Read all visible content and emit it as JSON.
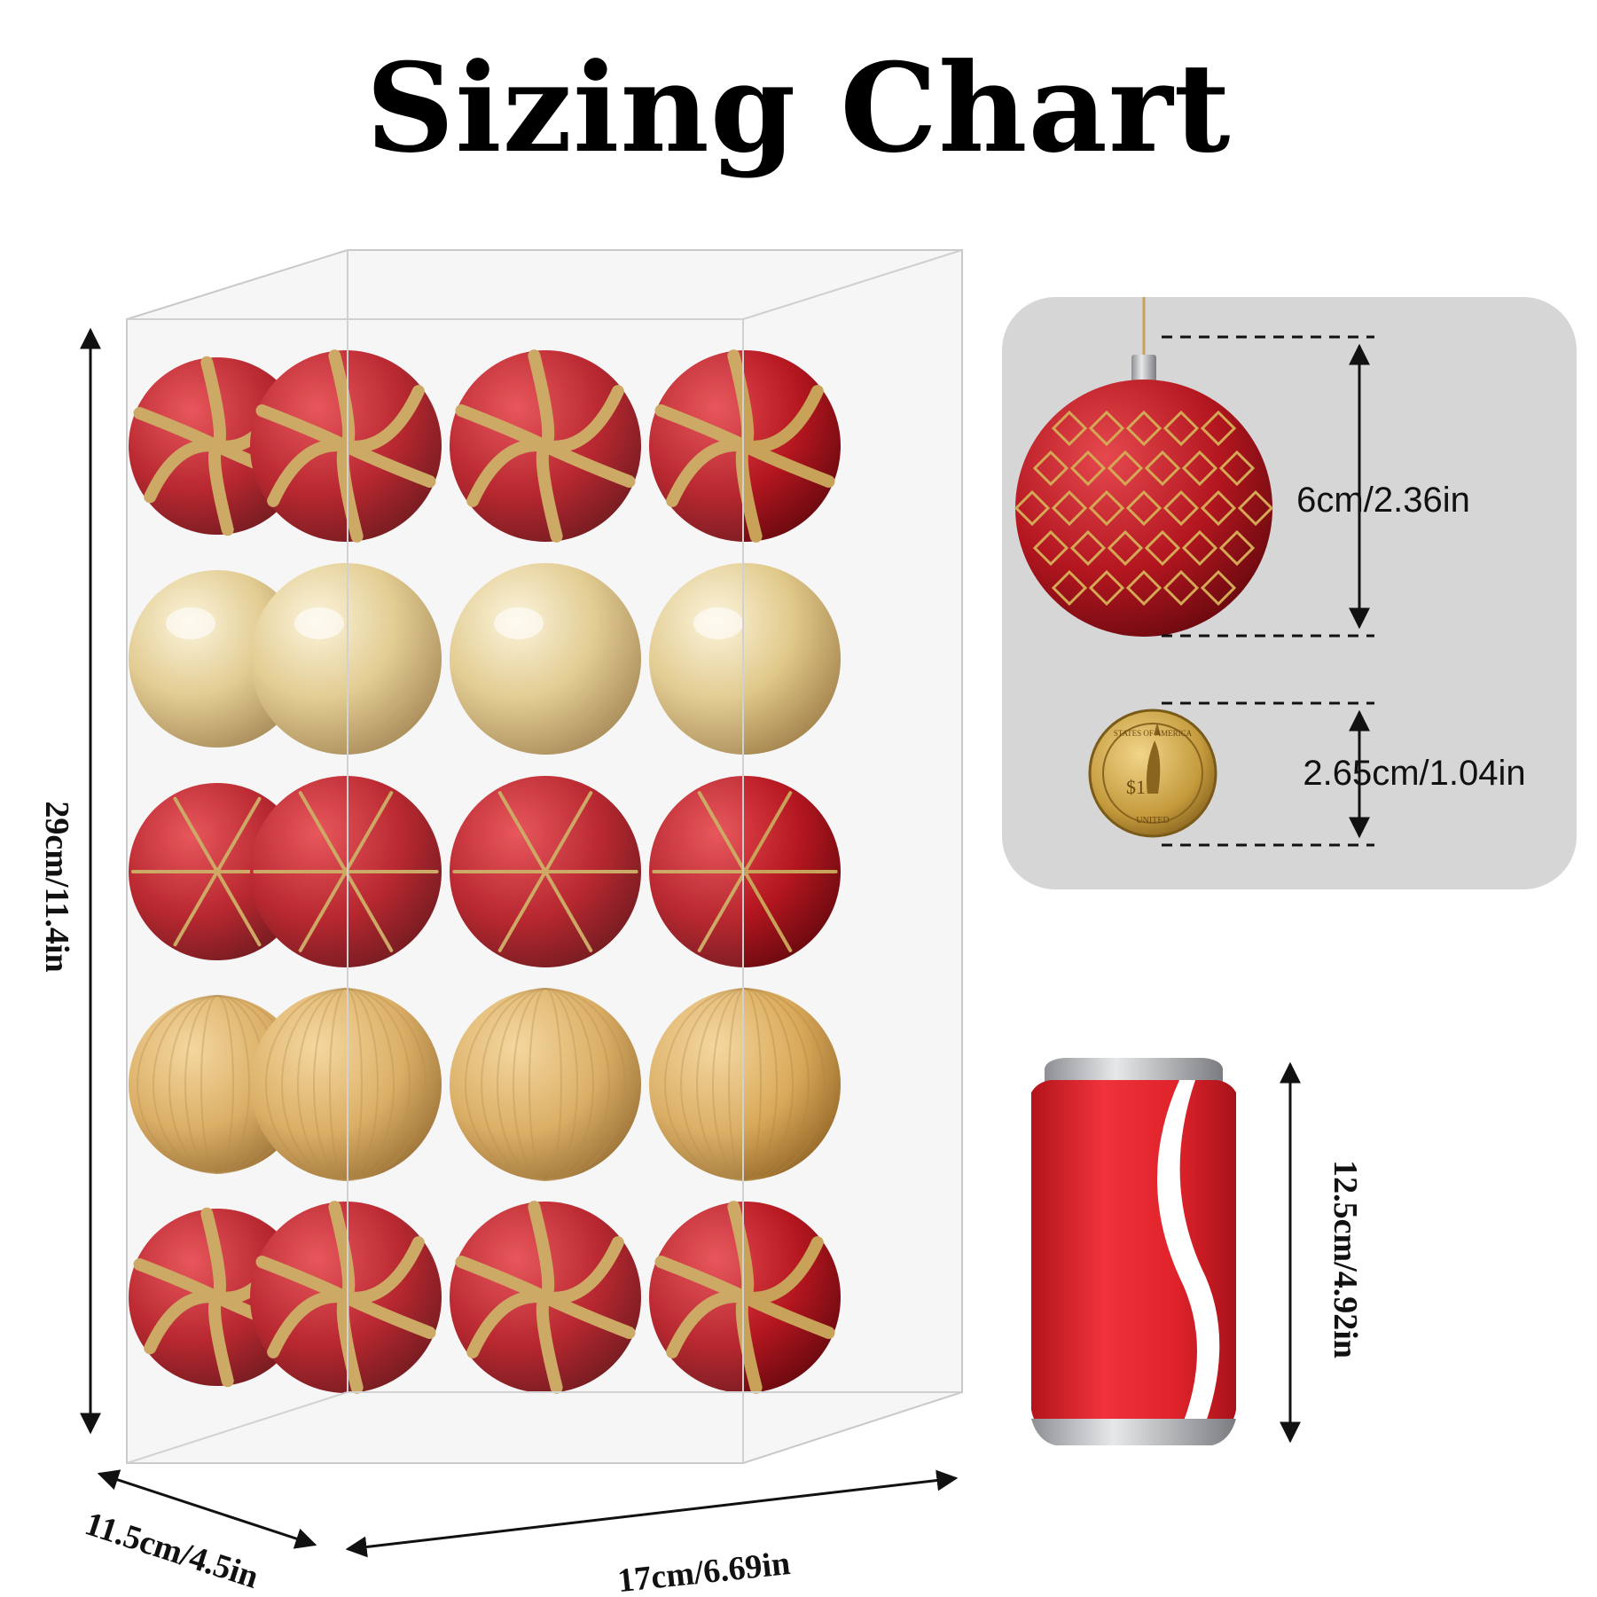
{
  "title": "Sizing Chart",
  "box": {
    "height_label": "29cm/11.4in",
    "width_label": "17cm/6.69in",
    "depth_label": "11.5cm/4.5in",
    "rows": [
      {
        "style": "swirl",
        "colors": [
          "#b5242a",
          "#c9a25a"
        ]
      },
      {
        "style": "shiny",
        "colors": [
          "#e8d39a",
          "#b8965a"
        ]
      },
      {
        "style": "geometric",
        "colors": [
          "#a8151d",
          "#c9a25a"
        ]
      },
      {
        "style": "matte",
        "colors": [
          "#e3b96a",
          "#b08440"
        ]
      },
      {
        "style": "swirl",
        "colors": [
          "#b5242a",
          "#c9a25a"
        ]
      }
    ]
  },
  "ornament": {
    "size_label": "6cm/2.36in",
    "color": "#b5242a",
    "accent": "#d4a955"
  },
  "coin": {
    "size_label": "2.65cm/1.04in",
    "rim_text": "STATES OF AMERICA",
    "value_text": "$1",
    "bottom_text": "UNITED"
  },
  "can": {
    "size_label": "12.5cm/4.92in",
    "color": "#e0232b"
  },
  "panel": {
    "background": "#d6d6d6"
  }
}
